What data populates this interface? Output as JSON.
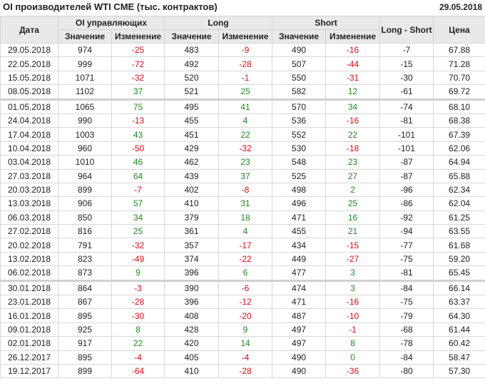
{
  "header": {
    "title": "OI производителей WTI CME (тыс. контрактов)",
    "date": "29.05.2018"
  },
  "colors": {
    "positive": "#1f8a1f",
    "negative": "#d0101a",
    "header_bg": "#e9e9e9"
  },
  "columns": {
    "date": "Дата",
    "oi": "OI управляющих",
    "long": "Long",
    "short": "Short",
    "value": "Значение",
    "change": "Изменение",
    "long_short": "Long - Short",
    "price": "Цена"
  },
  "rows": [
    [
      "29.05.2018",
      "974",
      "-25",
      "483",
      "-9",
      "490",
      "-16",
      "-7",
      "67.88"
    ],
    [
      "22.05.2018",
      "999",
      "-72",
      "492",
      "-28",
      "507",
      "-44",
      "-15",
      "71.28"
    ],
    [
      "15.05.2018",
      "1071",
      "-32",
      "520",
      "-1",
      "550",
      "-31",
      "-30",
      "70.70"
    ],
    [
      "08.05.2018",
      "1102",
      "37",
      "521",
      "25",
      "582",
      "12",
      "-61",
      "69.72"
    ],
    [
      "01.05.2018",
      "1065",
      "75",
      "495",
      "41",
      "570",
      "34",
      "-74",
      "68.10"
    ],
    [
      "24.04.2018",
      "990",
      "-13",
      "455",
      "4",
      "536",
      "-16",
      "-81",
      "68.38"
    ],
    [
      "17.04.2018",
      "1003",
      "43",
      "451",
      "22",
      "552",
      "22",
      "-101",
      "67.39"
    ],
    [
      "10.04.2018",
      "960",
      "-50",
      "429",
      "-32",
      "530",
      "-18",
      "-101",
      "62.06"
    ],
    [
      "03.04.2018",
      "1010",
      "46",
      "462",
      "23",
      "548",
      "23",
      "-87",
      "64.94"
    ],
    [
      "27.03.2018",
      "964",
      "64",
      "439",
      "37",
      "525",
      "27",
      "-87",
      "65.88"
    ],
    [
      "20.03.2018",
      "899",
      "-7",
      "402",
      "-8",
      "498",
      "2",
      "-96",
      "62.34"
    ],
    [
      "13.03.2018",
      "906",
      "57",
      "410",
      "31",
      "496",
      "25",
      "-86",
      "62.04"
    ],
    [
      "06.03.2018",
      "850",
      "34",
      "379",
      "18",
      "471",
      "16",
      "-92",
      "61.25"
    ],
    [
      "27.02.2018",
      "816",
      "25",
      "361",
      "4",
      "455",
      "21",
      "-94",
      "63.55"
    ],
    [
      "20.02.2018",
      "791",
      "-32",
      "357",
      "-17",
      "434",
      "-15",
      "-77",
      "61.68"
    ],
    [
      "13.02.2018",
      "823",
      "-49",
      "374",
      "-22",
      "449",
      "-27",
      "-75",
      "59.20"
    ],
    [
      "06.02.2018",
      "873",
      "9",
      "396",
      "6",
      "477",
      "3",
      "-81",
      "65.45"
    ],
    [
      "30.01.2018",
      "864",
      "-3",
      "390",
      "-6",
      "474",
      "3",
      "-84",
      "66.14"
    ],
    [
      "23.01.2018",
      "867",
      "-28",
      "396",
      "-12",
      "471",
      "-16",
      "-75",
      "63.37"
    ],
    [
      "16.01.2018",
      "895",
      "-30",
      "408",
      "-20",
      "487",
      "-10",
      "-79",
      "64.30"
    ],
    [
      "09.01.2018",
      "925",
      "8",
      "428",
      "9",
      "497",
      "-1",
      "-68",
      "61.44"
    ],
    [
      "02.01.2018",
      "917",
      "22",
      "420",
      "14",
      "497",
      "8",
      "-78",
      "60.42"
    ],
    [
      "26.12.2017",
      "895",
      "-4",
      "405",
      "-4",
      "490",
      "0",
      "-84",
      "58.47"
    ],
    [
      "19.12.2017",
      "899",
      "-64",
      "410",
      "-28",
      "490",
      "-36",
      "-80",
      "57.30"
    ]
  ]
}
